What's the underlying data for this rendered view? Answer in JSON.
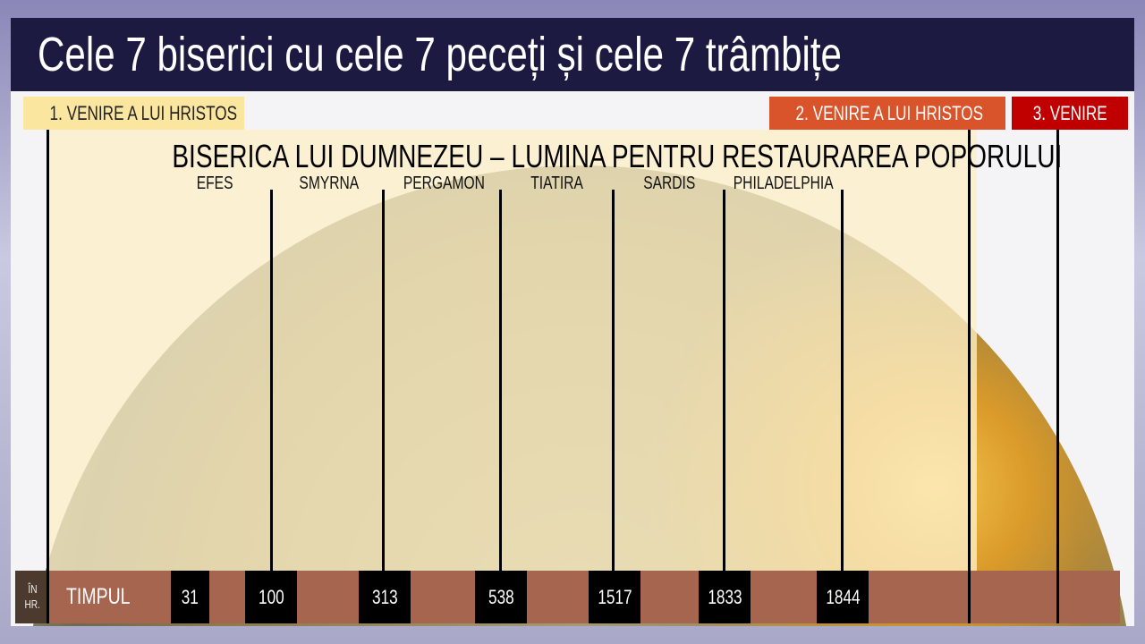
{
  "title": "Cele 7 biserici cu cele 7 peceți și cele 7 trâmbițe",
  "colors": {
    "title_bar": "#1c1a40",
    "first_coming": "#fbe6a0",
    "second_coming": "#d9532b",
    "third_coming": "#c00000",
    "timeline_bar": "#a5654f",
    "year_box": "#000000"
  },
  "comings": [
    "1. VENIRE A LUI HRISTOS",
    "2. VENIRE A LUI HRISTOS",
    "3. VENIRE"
  ],
  "heading": "BISERICA LUI DUMNEZEU – LUMINA PENTRU RESTAURAREA POPORULUI",
  "churches": [
    "EFES",
    "SMYRNA",
    "PERGAMON",
    "TIATIRA",
    "SARDIS",
    "PHILADELPHIA"
  ],
  "timeline": {
    "era_top": "ÎN",
    "era_bottom": "HR.",
    "label": "TIMPUL",
    "years": [
      "31",
      "100",
      "313",
      "538",
      "1517",
      "1833",
      "1844"
    ]
  }
}
